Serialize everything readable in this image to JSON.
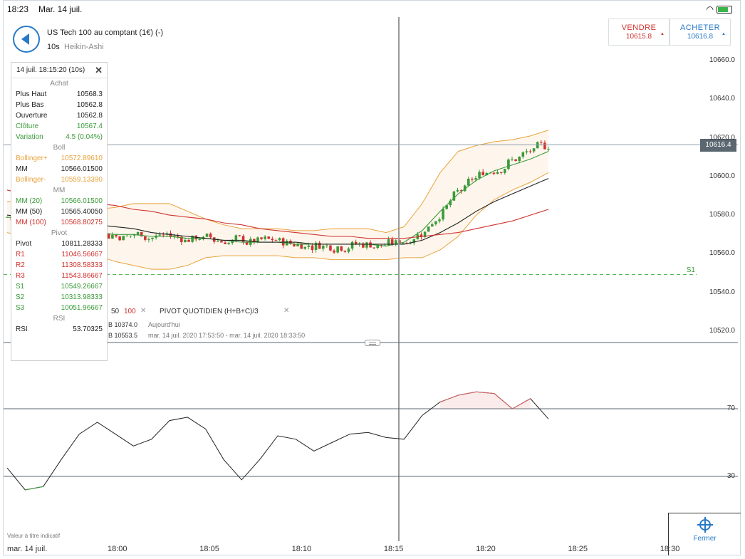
{
  "status_bar": {
    "time": "18:23",
    "date": "Mar. 14 juil."
  },
  "instrument": {
    "title": "US Tech 100 au comptant (1€) (-)",
    "interval": "10s",
    "chart_style": "Heikin-Ashi"
  },
  "trade": {
    "sell": {
      "label": "VENDRE",
      "price": "10615.8"
    },
    "buy": {
      "label": "ACHETER",
      "price": "10616.8"
    }
  },
  "current_price_tag": "10616.4",
  "info_panel": {
    "header": "14 juil. 18:15:20 (10s)",
    "achat": {
      "title": "Achat",
      "rows": [
        {
          "label": "Plus Haut",
          "value": "10568.3",
          "color": "#222222"
        },
        {
          "label": "Plus Bas",
          "value": "10562.8",
          "color": "#222222"
        },
        {
          "label": "Ouverture",
          "value": "10562.8",
          "color": "#222222"
        },
        {
          "label": "Clôture",
          "value": "10567.4",
          "color": "#3a9a3a"
        },
        {
          "label": "Variation",
          "value": "4.5 (0.04%)",
          "color": "#3a9a3a"
        }
      ]
    },
    "boll": {
      "title": "Boll",
      "rows": [
        {
          "label": "Bollinger+",
          "value": "10572.89610",
          "color": "#e8a33c"
        },
        {
          "label": "MM",
          "value": "10566.01500",
          "color": "#222222"
        },
        {
          "label": "Bollinger-",
          "value": "10559.13390",
          "color": "#e8a33c"
        }
      ]
    },
    "mm": {
      "title": "MM",
      "rows": [
        {
          "label": "MM (20)",
          "value": "10566.01500",
          "color": "#3a9a3a"
        },
        {
          "label": "MM (50)",
          "value": "10565.40050",
          "color": "#222222"
        },
        {
          "label": "MM (100)",
          "value": "10568.80275",
          "color": "#d0332f"
        }
      ]
    },
    "pivot": {
      "title": "Pivot",
      "rows": [
        {
          "label": "Pivot",
          "value": "10811.28333",
          "color": "#222222"
        },
        {
          "label": "R1",
          "value": "11046.56667",
          "color": "#d0332f"
        },
        {
          "label": "R2",
          "value": "11308.58333",
          "color": "#d0332f"
        },
        {
          "label": "R3",
          "value": "11543.86667",
          "color": "#d0332f"
        },
        {
          "label": "S1",
          "value": "10549.26667",
          "color": "#3a9a3a"
        },
        {
          "label": "S2",
          "value": "10313.98333",
          "color": "#3a9a3a"
        },
        {
          "label": "S3",
          "value": "10051.96667",
          "color": "#3a9a3a"
        }
      ]
    },
    "rsi": {
      "title": "RSI",
      "rows": [
        {
          "label": "RSI",
          "value": "53.70325",
          "color": "#222222"
        }
      ]
    }
  },
  "overlay_legend": {
    "ma_50": "50",
    "ma_100": "100",
    "pivot_label": "PIVOT  QUOTIDIEN  (H+B+C)/3",
    "row1_value": "B 10374.0",
    "row1_period": "Aujourd'hui",
    "row2_value": "B 10553.5",
    "row2_period": "mar. 14 juil. 2020 17:53:50 - mar. 14 juil. 2020 18:33:50"
  },
  "s1_label": "S1",
  "price_axis": [
    "10660.0",
    "10640.0",
    "10620.0",
    "10600.0",
    "10580.0",
    "10560.0",
    "10540.0",
    "10520.0"
  ],
  "rsi_axis": [
    "70",
    "30"
  ],
  "time_axis": {
    "date": "mar. 14 juil.",
    "ticks": [
      "18:00",
      "18:05",
      "18:10",
      "18:15",
      "18:20",
      "18:25",
      "18:30"
    ]
  },
  "disclaimer": "Valeur à titre indicatif",
  "close_button": "Fermer",
  "colors": {
    "accent": "#2979c8",
    "sell": "#d0332f",
    "up": "#3a9a3a",
    "down": "#d0332f",
    "bollinger": "#e8a33c"
  },
  "chart_data": {
    "type": "candlestick",
    "price_range": [
      10520,
      10660
    ],
    "series": [
      {
        "name": "MM (20)",
        "values": [
          10579,
          10578,
          10577,
          10575,
          10573,
          10571,
          10570,
          10570,
          10569,
          10569,
          10568,
          10568,
          10567,
          10566,
          10566,
          10566,
          10565,
          10565,
          10565,
          10565,
          10565,
          10564,
          10566,
          10572,
          10582,
          10591,
          10598,
          10603,
          10606,
          10609,
          10613
        ]
      },
      {
        "name": "MM (50)",
        "values": [
          10580,
          10579,
          10578,
          10577,
          10576,
          10575,
          10574,
          10573,
          10571,
          10570,
          10569,
          10568,
          10567,
          10567,
          10566,
          10566,
          10566,
          10565,
          10565,
          10565,
          10565,
          10565,
          10565,
          10567,
          10571,
          10576,
          10582,
          10587,
          10591,
          10595,
          10599
        ]
      },
      {
        "name": "MM (100)",
        "values": [
          10593,
          10591,
          10590,
          10588,
          10587,
          10586,
          10585,
          10583,
          10582,
          10580,
          10579,
          10578,
          10576,
          10575,
          10573,
          10572,
          10571,
          10570,
          10569,
          10569,
          10568,
          10568,
          10568,
          10569,
          10570,
          10571,
          10573,
          10575,
          10577,
          10580,
          10583
        ]
      },
      {
        "name": "RSI",
        "values": [
          35,
          22,
          24,
          40,
          55,
          62,
          55,
          48,
          52,
          63,
          65,
          58,
          40,
          28,
          40,
          54,
          52,
          45,
          50,
          55,
          56,
          53,
          52,
          66,
          74,
          78,
          80,
          79,
          70,
          76,
          64
        ]
      }
    ]
  }
}
